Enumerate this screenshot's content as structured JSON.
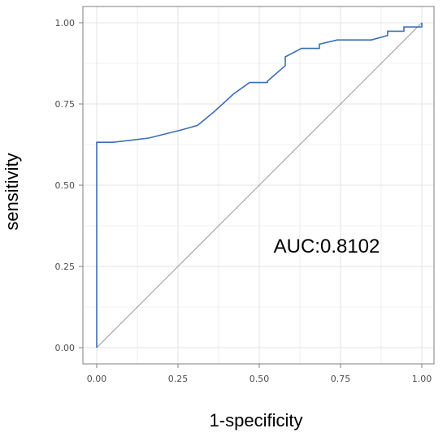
{
  "chart_data": {
    "type": "line",
    "xlabel": "1-specificity",
    "ylabel": "sensitivity",
    "xlim": [
      0,
      1
    ],
    "ylim": [
      0,
      1
    ],
    "x_ticks": [
      "0.00",
      "0.25",
      "0.50",
      "0.75",
      "1.00"
    ],
    "y_ticks": [
      "0.00",
      "0.25",
      "0.50",
      "0.75",
      "1.00"
    ],
    "grid": true,
    "annotation": "AUC:0.8102",
    "colors": {
      "roc": "#3b6eb5",
      "reference": "#9a9a9a",
      "grid": "#e3e3e3",
      "frame": "#7f7f7f"
    },
    "series": [
      {
        "x": [
          0.0,
          0.0,
          0.05,
          0.16,
          0.26,
          0.31,
          0.36,
          0.42,
          0.47,
          0.525,
          0.525,
          0.58,
          0.58,
          0.63,
          0.685,
          0.685,
          0.74,
          0.845,
          0.895,
          0.895,
          0.945,
          0.945,
          1.0,
          1.0
        ],
        "y": [
          0.0,
          0.632,
          0.632,
          0.645,
          0.67,
          0.684,
          0.725,
          0.78,
          0.816,
          0.816,
          0.82,
          0.868,
          0.895,
          0.921,
          0.921,
          0.934,
          0.947,
          0.947,
          0.961,
          0.974,
          0.974,
          0.987,
          0.987,
          1.0
        ]
      },
      {
        "x": [
          0,
          1
        ],
        "y": [
          0,
          1
        ]
      }
    ]
  }
}
